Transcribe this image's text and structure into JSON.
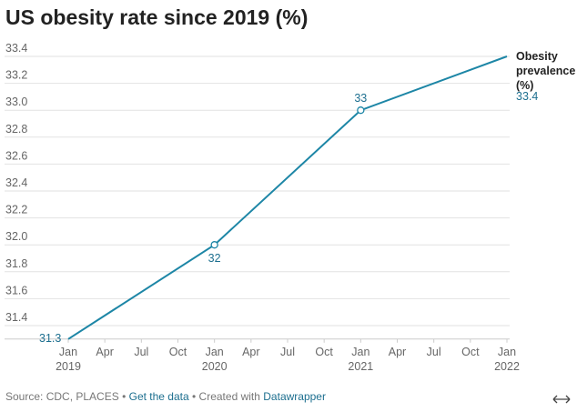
{
  "title": "US obesity rate since 2019 (%)",
  "chart_data": {
    "type": "line",
    "x": [
      "2019-01",
      "2020-01",
      "2021-01",
      "2022-01"
    ],
    "series": [
      {
        "name": "Obesity prevalence (%)",
        "color": "#1d86a6",
        "values": [
          31.3,
          32,
          33,
          33.4
        ]
      }
    ],
    "xlim": [
      "2019-01",
      "2022-01"
    ],
    "xticks": [
      {
        "value": "2019-01",
        "label": "Jan 2019"
      },
      {
        "value": "2019-04",
        "label": "Apr"
      },
      {
        "value": "2019-07",
        "label": "Jul"
      },
      {
        "value": "2019-10",
        "label": "Oct"
      },
      {
        "value": "2020-01",
        "label": "Jan 2020"
      },
      {
        "value": "2020-04",
        "label": "Apr"
      },
      {
        "value": "2020-07",
        "label": "Jul"
      },
      {
        "value": "2020-10",
        "label": "Oct"
      },
      {
        "value": "2021-01",
        "label": "Jan 2021"
      },
      {
        "value": "2021-04",
        "label": "Apr"
      },
      {
        "value": "2021-07",
        "label": "Jul"
      },
      {
        "value": "2021-10",
        "label": "Oct"
      },
      {
        "value": "2022-01",
        "label": "Jan 2022"
      }
    ],
    "ylim": [
      31.3,
      33.4
    ],
    "yticks": [
      31.4,
      31.6,
      31.8,
      {
        "value": 32,
        "label": "32.0"
      },
      32.2,
      32.4,
      32.6,
      32.8,
      {
        "value": 33,
        "label": "33.0"
      },
      33.2,
      33.4
    ],
    "grid": true
  },
  "footer": {
    "source": "Source: CDC, PLACES",
    "separator": "•",
    "data_link": "Get the data",
    "credit": "Created with",
    "credit_link": "Datawrapper"
  }
}
